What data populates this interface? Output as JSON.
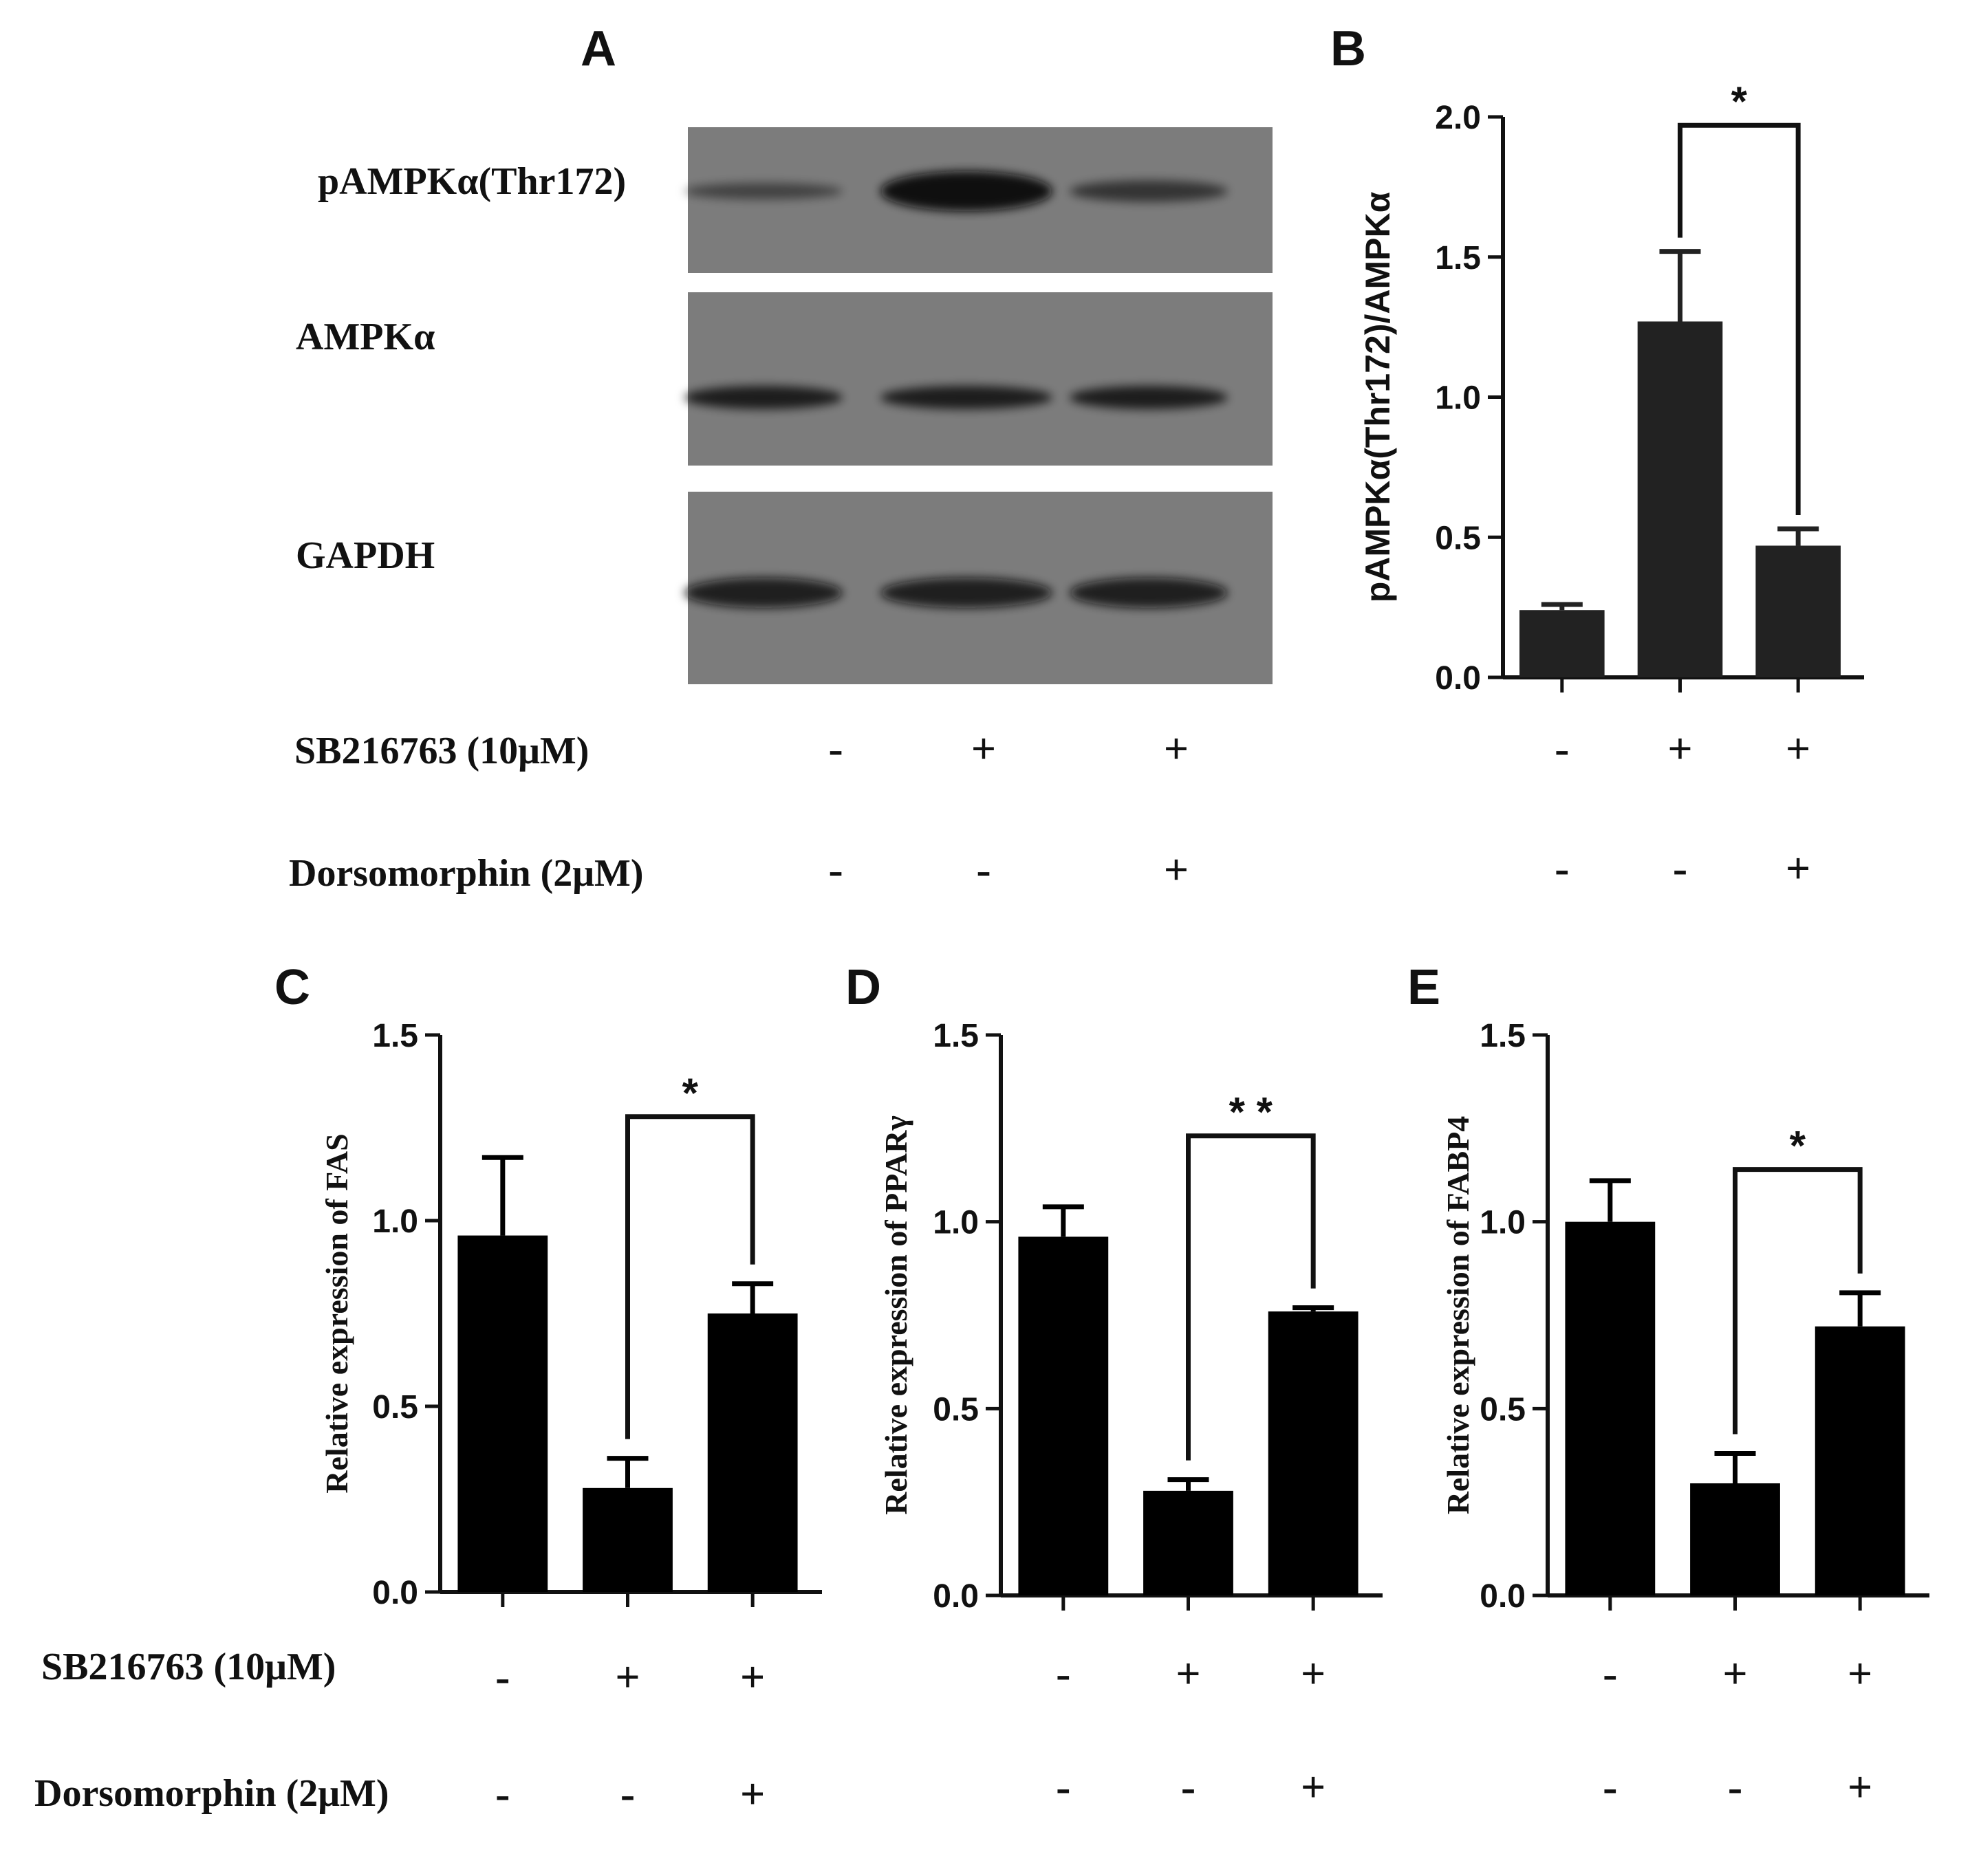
{
  "panel_letters": [
    "A",
    "B",
    "C",
    "D",
    "E"
  ],
  "blot": {
    "rows": [
      {
        "label": "pAMPKα(Thr172)",
        "intensities": [
          0.25,
          1.27,
          0.47
        ]
      },
      {
        "label": "AMPKα",
        "intensities": [
          0.85,
          0.85,
          0.85
        ]
      },
      {
        "label": "GAPDH",
        "intensities": [
          1.0,
          1.0,
          1.0
        ]
      }
    ]
  },
  "treatments": [
    {
      "label": "SB216763 (10μM)",
      "signs": [
        "-",
        "+",
        "+"
      ]
    },
    {
      "label": "Dorsomorphin  (2μM)",
      "signs": [
        "-",
        "-",
        "+"
      ]
    }
  ],
  "chart_data": [
    {
      "panel": "B",
      "type": "bar",
      "ylabel": "pAMPKα(Thr172)/AMPKα",
      "ylim": [
        0,
        2.0
      ],
      "yticks": [
        "0.0",
        "0.5",
        "1.0",
        "1.5",
        "2.0"
      ],
      "values": [
        0.24,
        1.27,
        0.47
      ],
      "errors": [
        0.02,
        0.25,
        0.06
      ],
      "bar_color": "#222222",
      "significance": {
        "between": [
          1,
          2
        ],
        "label": "*"
      },
      "treatment_signs": [
        [
          "-",
          "+",
          "+"
        ],
        [
          "-",
          "-",
          "+"
        ]
      ]
    },
    {
      "panel": "C",
      "type": "bar",
      "ylabel": "Relative expression of FAS",
      "ylim": [
        0,
        1.5
      ],
      "yticks": [
        "0.0",
        "0.5",
        "1.0",
        "1.5"
      ],
      "values": [
        0.96,
        0.28,
        0.75
      ],
      "errors": [
        0.21,
        0.08,
        0.08
      ],
      "bar_color": "#000000",
      "significance": {
        "between": [
          1,
          2
        ],
        "label": "*"
      },
      "treatment_signs": [
        [
          "-",
          "+",
          "+"
        ],
        [
          "-",
          "-",
          "+"
        ]
      ]
    },
    {
      "panel": "D",
      "type": "bar",
      "ylabel": "Relative expression of PPARγ",
      "ylim": [
        0,
        1.5
      ],
      "yticks": [
        "0.0",
        "0.5",
        "1.0",
        "1.5"
      ],
      "values": [
        0.96,
        0.28,
        0.76
      ],
      "errors": [
        0.08,
        0.03,
        0.01
      ],
      "bar_color": "#000000",
      "significance": {
        "between": [
          1,
          2
        ],
        "label": "* *"
      },
      "treatment_signs": [
        [
          "-",
          "+",
          "+"
        ],
        [
          "-",
          "-",
          "+"
        ]
      ]
    },
    {
      "panel": "E",
      "type": "bar",
      "ylabel": "Relative expression of FABP4",
      "ylim": [
        0,
        1.5
      ],
      "yticks": [
        "0.0",
        "0.5",
        "1.0",
        "1.5"
      ],
      "values": [
        1.0,
        0.3,
        0.72
      ],
      "errors": [
        0.11,
        0.08,
        0.09
      ],
      "bar_color": "#000000",
      "significance": {
        "between": [
          1,
          2
        ],
        "label": "*"
      },
      "treatment_signs": [
        [
          "-",
          "+",
          "+"
        ],
        [
          "-",
          "-",
          "+"
        ]
      ]
    }
  ]
}
